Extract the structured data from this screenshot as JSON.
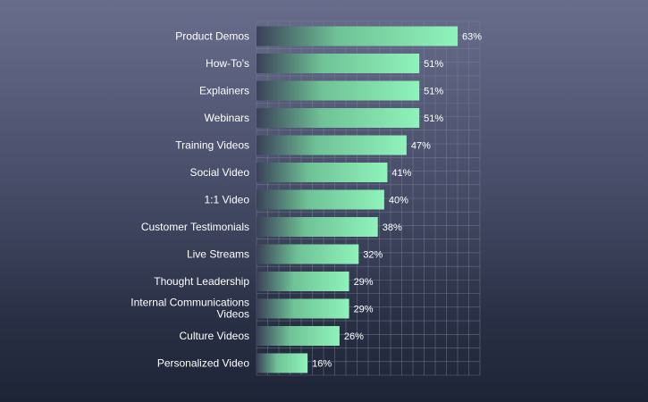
{
  "chart_data": {
    "type": "bar",
    "orientation": "horizontal",
    "title": "",
    "xlabel": "",
    "ylabel": "",
    "categories": [
      "Product Demos",
      "How-To's",
      "Explainers",
      "Webinars",
      "Training Videos",
      "Social Video",
      "1:1 Video",
      "Customer Testimonials",
      "Live Streams",
      "Thought Leadership",
      "Internal Communications Videos",
      "Culture Videos",
      "Personalized Video"
    ],
    "values": [
      63,
      51,
      51,
      51,
      47,
      41,
      40,
      38,
      32,
      29,
      29,
      26,
      16
    ],
    "value_labels": [
      "63%",
      "51%",
      "51%",
      "51%",
      "47%",
      "41%",
      "40%",
      "38%",
      "32%",
      "29%",
      "29%",
      "26%",
      "16%"
    ],
    "xlim": [
      0,
      70
    ],
    "grid": true,
    "bar_gradient": [
      "#3a4058",
      "#8ff3ba"
    ],
    "grid_color": "#7a8196"
  }
}
